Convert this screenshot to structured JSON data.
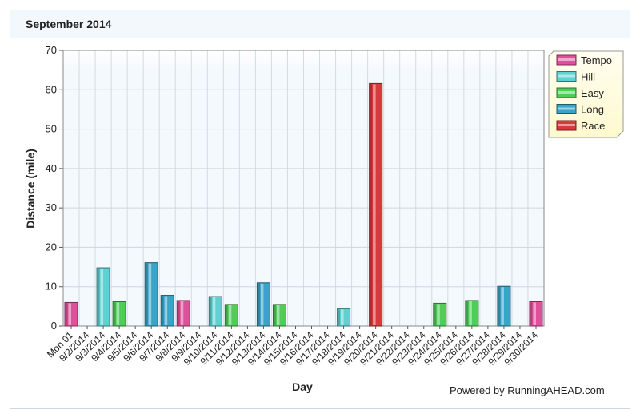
{
  "panel": {
    "title": "September 2014"
  },
  "footer": {
    "powered_by": "Powered by RunningAHEAD.com"
  },
  "colors": {
    "Tempo": "#e0509a",
    "Hill": "#5fd1d1",
    "Easy": "#4fcc5a",
    "Long": "#3aa4c8",
    "Race": "#d9383c"
  },
  "chart_data": {
    "type": "bar",
    "title": "",
    "xlabel": "Day",
    "ylabel": "Distance (mile)",
    "ylim": [
      0,
      70
    ],
    "yticks": [
      0,
      10,
      20,
      30,
      40,
      50,
      60,
      70
    ],
    "grid": true,
    "legend_position": "top-right",
    "categories": [
      "Mon 01",
      "9/2/2014",
      "9/3/2014",
      "9/4/2014",
      "9/5/2014",
      "9/6/2014",
      "9/7/2014",
      "9/8/2014",
      "9/9/2014",
      "9/10/2014",
      "9/11/2014",
      "9/12/2014",
      "9/13/2014",
      "9/14/2014",
      "9/15/2014",
      "9/16/2014",
      "9/17/2014",
      "9/18/2014",
      "9/19/2014",
      "9/20/2014",
      "9/21/2014",
      "9/22/2014",
      "9/23/2014",
      "9/24/2014",
      "9/25/2014",
      "9/26/2014",
      "9/27/2014",
      "9/28/2014",
      "9/29/2014",
      "9/30/2014"
    ],
    "series": [
      {
        "name": "Tempo",
        "values": [
          6.0,
          0,
          0,
          0,
          0,
          0,
          0,
          6.5,
          0,
          0,
          0,
          0,
          0,
          0,
          0,
          0,
          0,
          0,
          0,
          0,
          0,
          0,
          0,
          0,
          0,
          0,
          0,
          0,
          0,
          6.2
        ]
      },
      {
        "name": "Hill",
        "values": [
          0,
          0,
          14.8,
          0,
          0,
          0,
          0,
          0,
          0,
          7.5,
          0,
          0,
          0,
          0,
          0,
          0,
          0,
          4.4,
          0,
          0,
          0,
          0,
          0,
          0,
          0,
          0,
          0,
          0,
          0,
          0
        ]
      },
      {
        "name": "Easy",
        "values": [
          0,
          0,
          0,
          6.2,
          0,
          0,
          0,
          0,
          0,
          0,
          5.5,
          0,
          0,
          5.5,
          0,
          0,
          0,
          0,
          0,
          0,
          0,
          0,
          0,
          5.8,
          0,
          6.5,
          0,
          0,
          0,
          0
        ]
      },
      {
        "name": "Long",
        "values": [
          0,
          0,
          0,
          0,
          0,
          16.1,
          7.8,
          0,
          0,
          0,
          0,
          0,
          11.0,
          0,
          0,
          0,
          0,
          0,
          0,
          0,
          0,
          0,
          0,
          0,
          0,
          0,
          0,
          10.1,
          0,
          0
        ]
      },
      {
        "name": "Race",
        "values": [
          0,
          0,
          0,
          0,
          0,
          0,
          0,
          0,
          0,
          0,
          0,
          0,
          0,
          0,
          0,
          0,
          0,
          0,
          0,
          61.6,
          0,
          0,
          0,
          0,
          0,
          0,
          0,
          0,
          0,
          0
        ]
      }
    ]
  }
}
